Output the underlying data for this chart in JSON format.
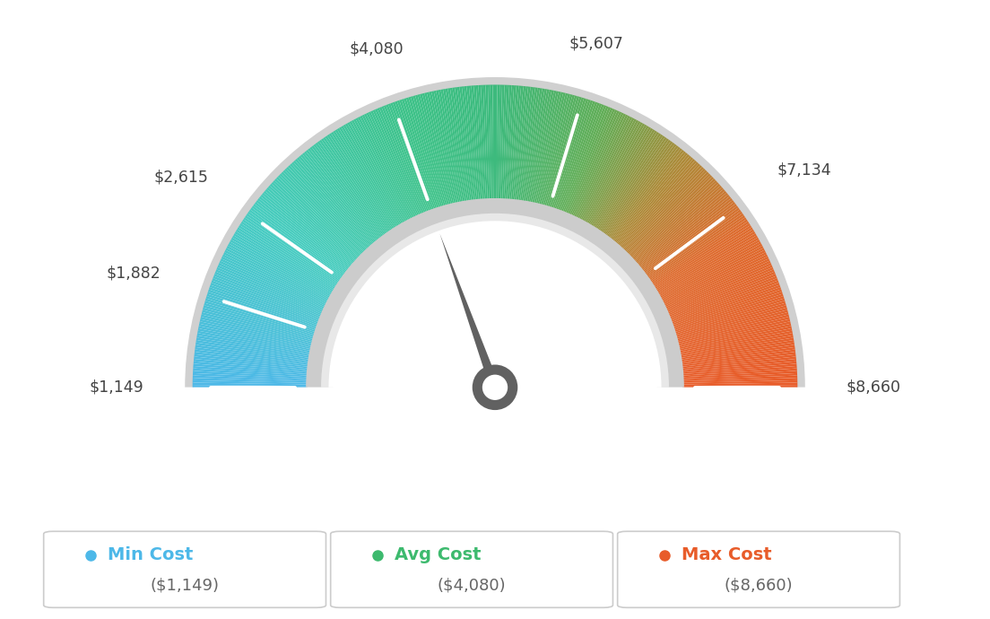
{
  "min_val": 1149,
  "max_val": 8660,
  "avg_val": 4080,
  "tick_values": [
    1149,
    1882,
    2615,
    4080,
    5607,
    7134,
    8660
  ],
  "tick_labels": [
    "$1,149",
    "$1,882",
    "$2,615",
    "$4,080",
    "$5,607",
    "$7,134",
    "$8,660"
  ],
  "min_cost_label": "Min Cost",
  "avg_cost_label": "Avg Cost",
  "max_cost_label": "Max Cost",
  "min_cost_val": "($1,149)",
  "avg_cost_val": "($4,080)",
  "max_cost_val": "($8,660)",
  "min_color": "#4db8e8",
  "avg_color": "#3dba6e",
  "max_color": "#e85c2a",
  "background_color": "#ffffff",
  "color_stops": [
    [
      0.0,
      [
        0.302,
        0.722,
        0.91
      ]
    ],
    [
      0.2,
      [
        0.275,
        0.8,
        0.75
      ]
    ],
    [
      0.4,
      [
        0.239,
        0.761,
        0.537
      ]
    ],
    [
      0.5,
      [
        0.239,
        0.73,
        0.49
      ]
    ],
    [
      0.62,
      [
        0.38,
        0.68,
        0.34
      ]
    ],
    [
      0.72,
      [
        0.68,
        0.54,
        0.22
      ]
    ],
    [
      0.82,
      [
        0.87,
        0.42,
        0.18
      ]
    ],
    [
      1.0,
      [
        0.91,
        0.361,
        0.165
      ]
    ]
  ]
}
